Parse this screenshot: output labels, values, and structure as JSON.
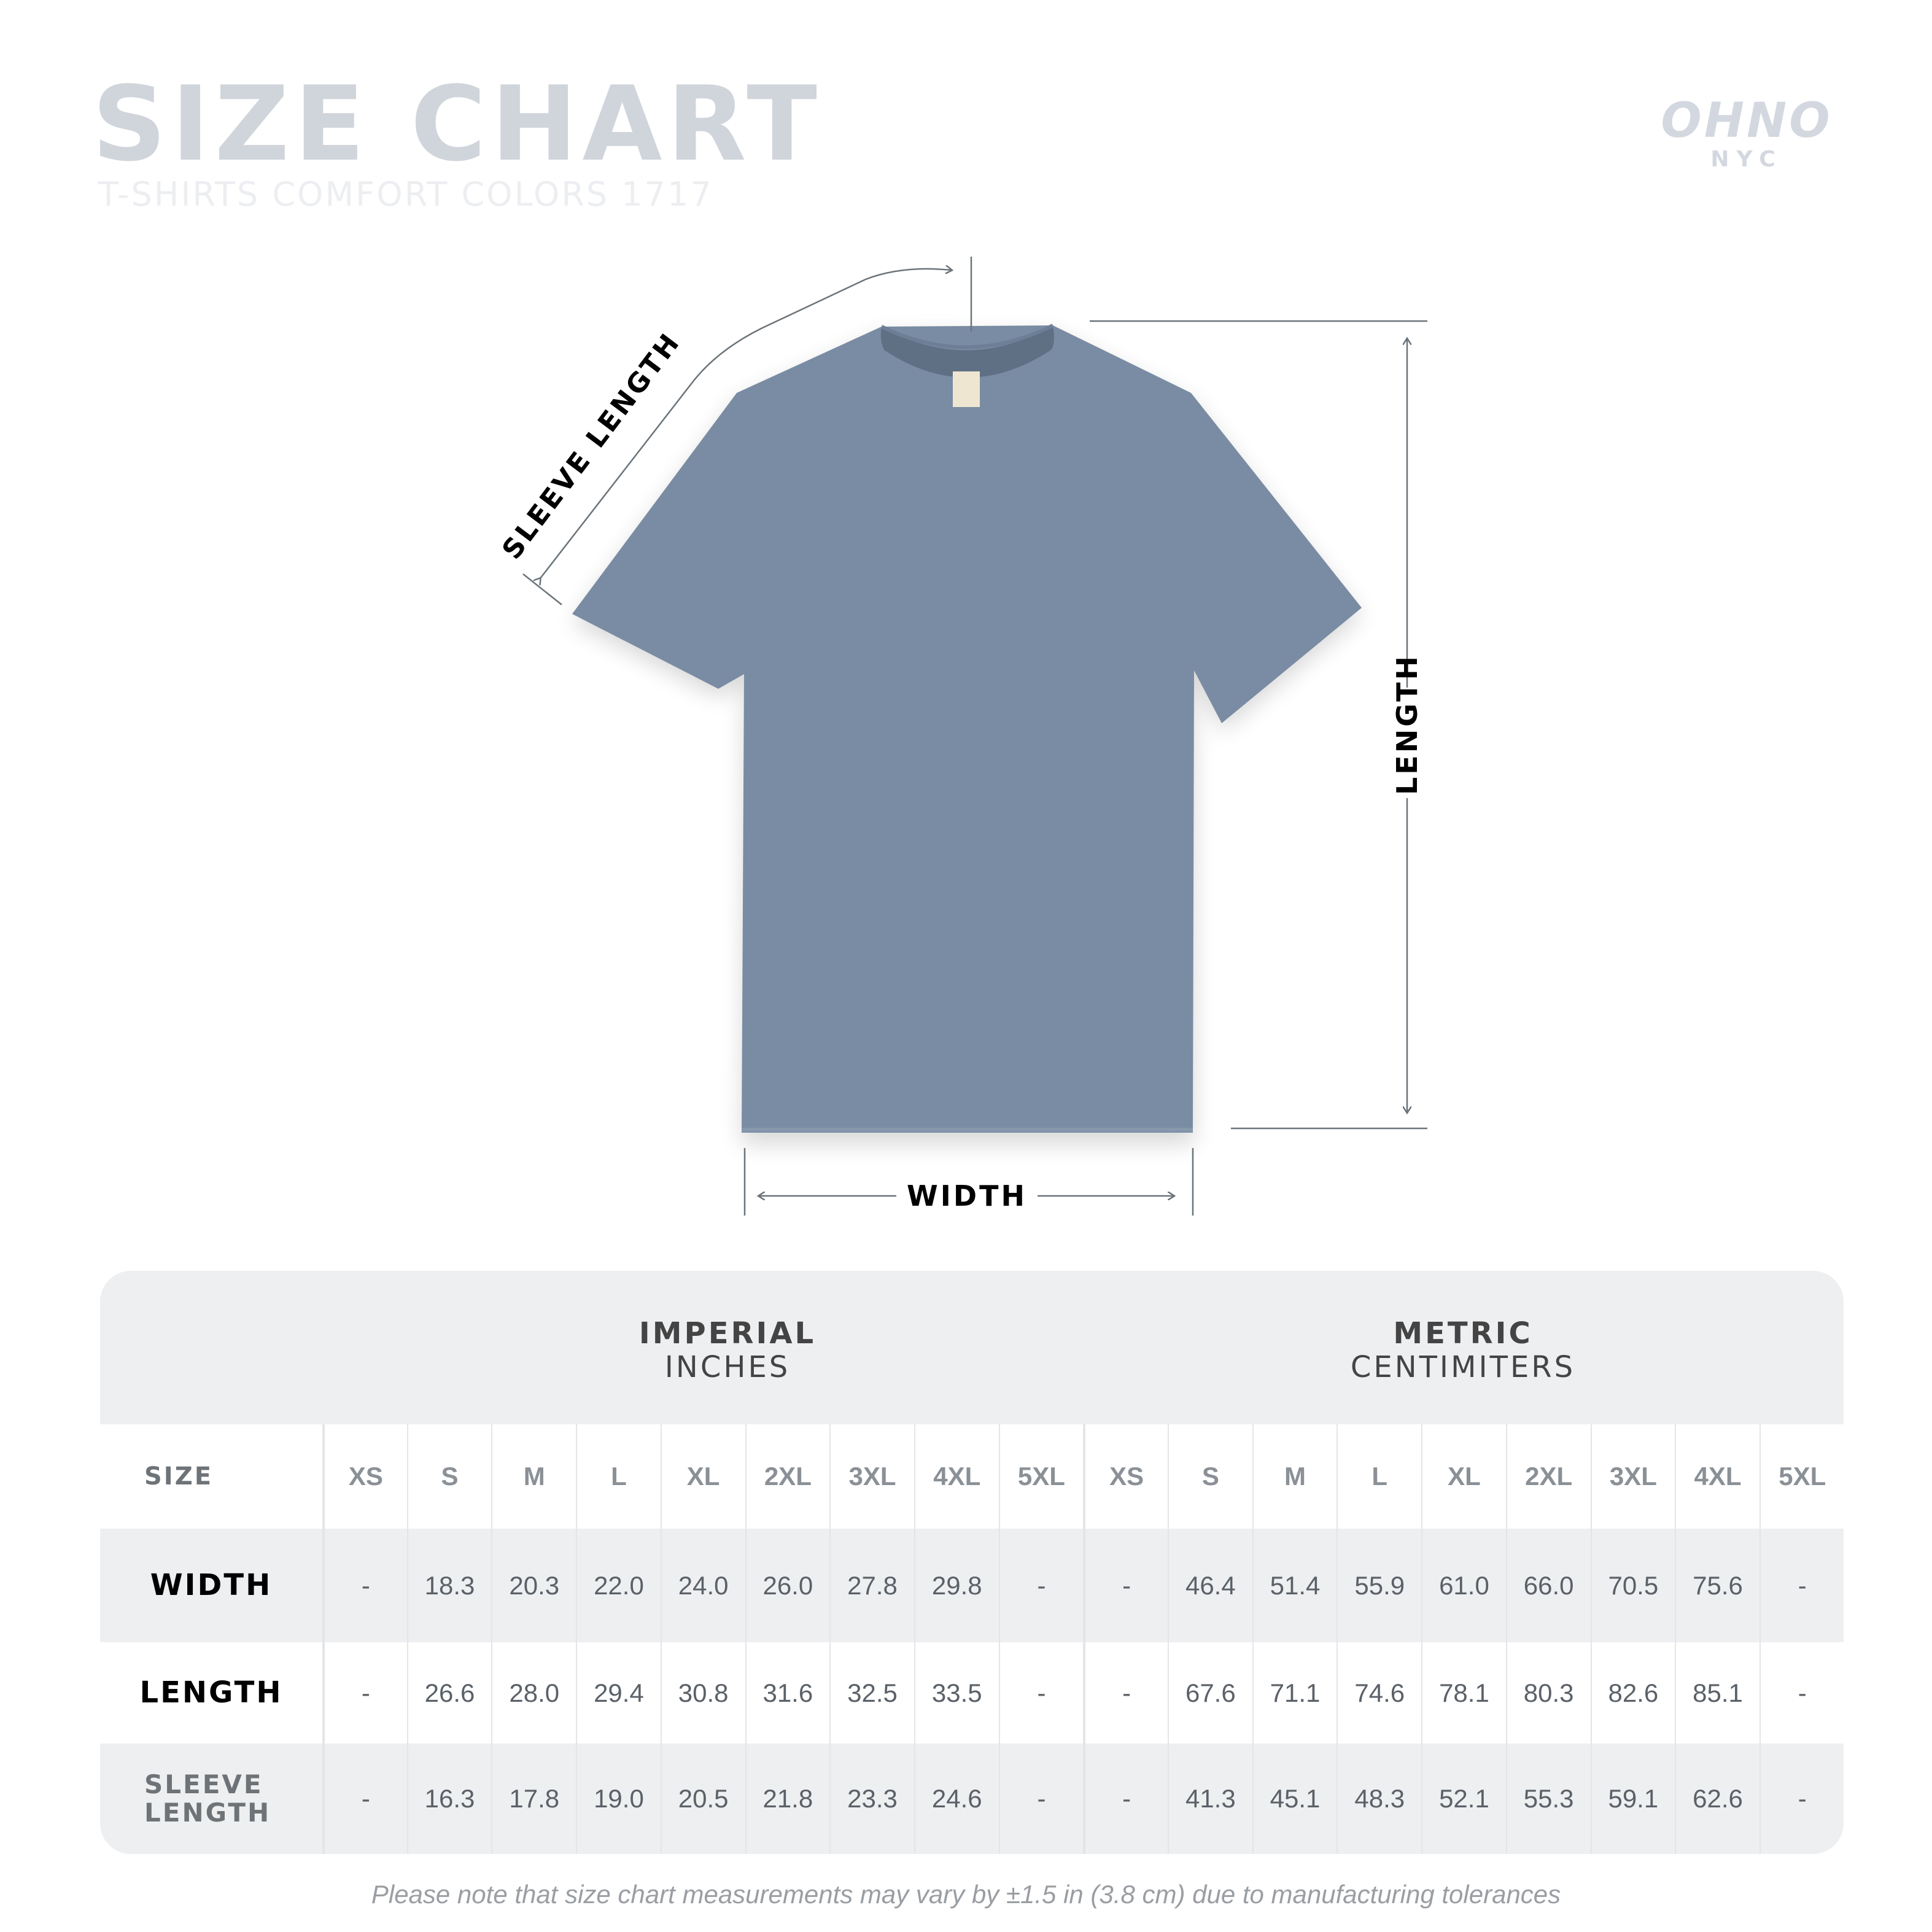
{
  "header": {
    "title": "SIZE CHART",
    "subtitle": "T-SHIRTS COMFORT COLORS 1717"
  },
  "logo": {
    "main": "OHNO",
    "sub": "NYC"
  },
  "diagram": {
    "shirt_color": "#7a8ca3",
    "labels": {
      "sleeve": "SLEEVE LENGTH",
      "length": "LENGTH",
      "width": "WIDTH"
    }
  },
  "table": {
    "imperial": {
      "title": "IMPERIAL",
      "unit": "INCHES"
    },
    "metric": {
      "title": "METRIC",
      "unit": "CENTIMITERS"
    },
    "size_label": "SIZE",
    "sizes": [
      "XS",
      "S",
      "M",
      "L",
      "XL",
      "2XL",
      "3XL",
      "4XL",
      "5XL"
    ],
    "rows": [
      {
        "label": "WIDTH",
        "imperial": [
          "-",
          "18.3",
          "20.3",
          "22.0",
          "24.0",
          "26.0",
          "27.8",
          "29.8",
          "-"
        ],
        "metric": [
          "-",
          "46.4",
          "51.4",
          "55.9",
          "61.0",
          "66.0",
          "70.5",
          "75.6",
          "-"
        ]
      },
      {
        "label": "LENGTH",
        "imperial": [
          "-",
          "26.6",
          "28.0",
          "29.4",
          "30.8",
          "31.6",
          "32.5",
          "33.5",
          "-"
        ],
        "metric": [
          "-",
          "67.6",
          "71.1",
          "74.6",
          "78.1",
          "80.3",
          "82.6",
          "85.1",
          "-"
        ]
      },
      {
        "label": "SLEEVE LENGTH",
        "imperial": [
          "-",
          "16.3",
          "17.8",
          "19.0",
          "20.5",
          "21.8",
          "23.3",
          "24.6",
          "-"
        ],
        "metric": [
          "-",
          "41.3",
          "45.1",
          "48.3",
          "52.1",
          "55.3",
          "59.1",
          "62.6",
          "-"
        ]
      }
    ]
  },
  "footnote": "Please note that size chart measurements may vary by ±1.5 in (3.8 cm) due to manufacturing tolerances"
}
